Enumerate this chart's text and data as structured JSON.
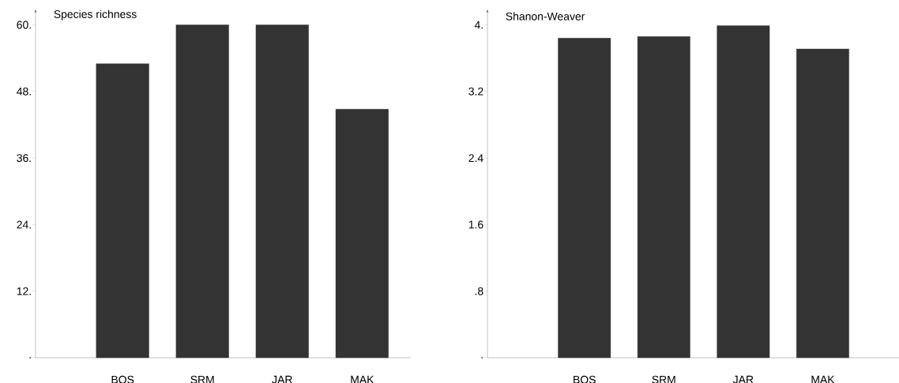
{
  "chart_data": [
    {
      "type": "bar",
      "ylabel": "Species richness",
      "categories": [
        "BOS",
        "SRM",
        "JAR",
        "MAK"
      ],
      "values": [
        53,
        60,
        60,
        44.8
      ],
      "color": "#333333",
      "ylim": [
        0,
        60
      ],
      "yticks": [
        {
          "value": 0,
          "label": "."
        },
        {
          "value": 12,
          "label": "12."
        },
        {
          "value": 24,
          "label": "24."
        },
        {
          "value": 36,
          "label": "36."
        },
        {
          "value": 48,
          "label": "48."
        },
        {
          "value": 60,
          "label": "60."
        }
      ]
    },
    {
      "type": "bar",
      "ylabel": "Shanon-Weaver",
      "categories": [
        "BOS",
        "SRM",
        "JAR",
        "MAK"
      ],
      "values": [
        3.84,
        3.86,
        3.99,
        3.71
      ],
      "color": "#333333",
      "ylim": [
        0,
        4
      ],
      "yticks": [
        {
          "value": 0,
          "label": "."
        },
        {
          "value": 0.8,
          "label": ".8"
        },
        1.6,
        2.4,
        3.2,
        {
          "value": 4,
          "label": "4."
        }
      ]
    }
  ]
}
